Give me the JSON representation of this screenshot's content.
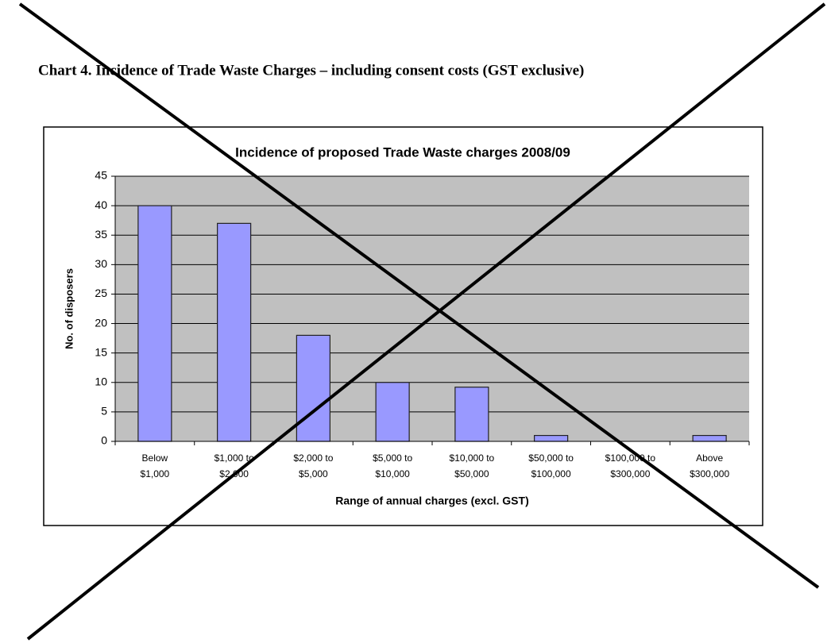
{
  "heading": "Chart 4. Incidence of Trade Waste Charges – including consent costs (GST exclusive)",
  "chart_data": {
    "type": "bar",
    "title": "Incidence of proposed Trade Waste charges 2008/09",
    "x_label": "Range of annual charges (excl. GST)",
    "y_label": "No. of disposers",
    "categories": [
      [
        "Below",
        "$1,000"
      ],
      [
        "$1,000 to",
        "$2,000"
      ],
      [
        "$2,000 to",
        "$5,000"
      ],
      [
        "$5,000 to",
        "$10,000"
      ],
      [
        "$10,000 to",
        "$50,000"
      ],
      [
        "$50,000 to",
        "$100,000"
      ],
      [
        "$100,000 to",
        "$300,000"
      ],
      [
        "Above",
        "$300,000"
      ]
    ],
    "values": [
      40,
      37,
      18,
      10,
      9.2,
      1,
      0,
      1
    ],
    "color": "#9999ff",
    "ylim": [
      0,
      45
    ],
    "yticks": [
      0,
      5,
      10,
      15,
      20,
      25,
      30,
      35,
      40,
      45
    ],
    "grid": true
  }
}
